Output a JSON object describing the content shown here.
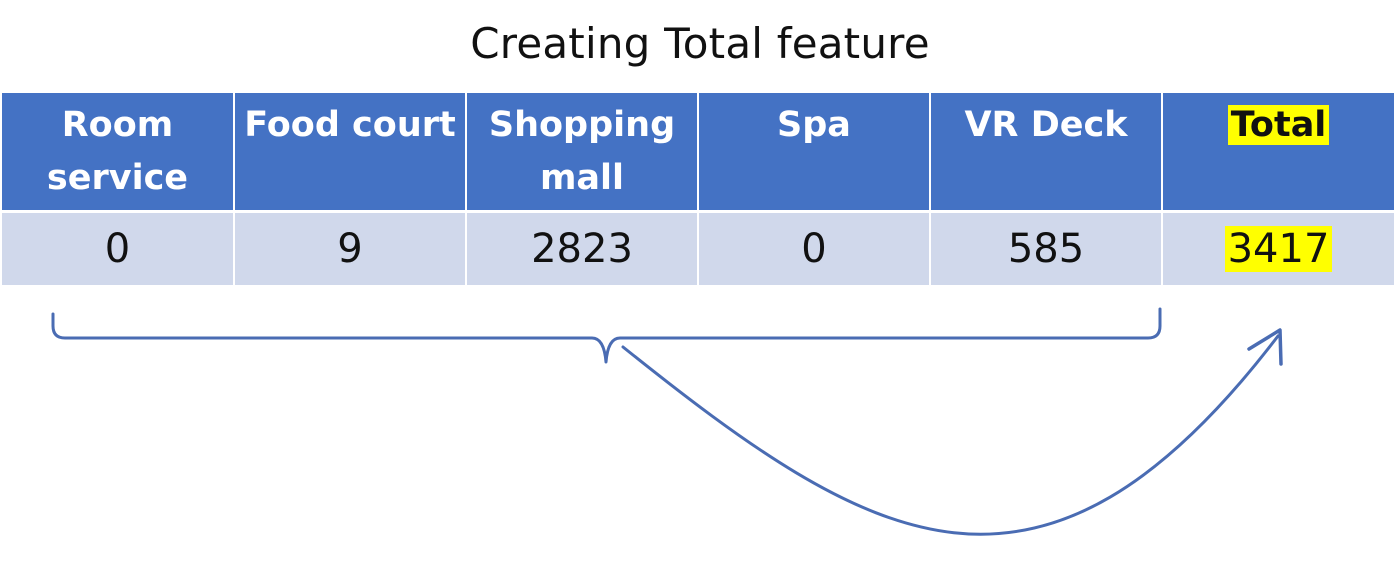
{
  "title": "Creating Total feature",
  "table": {
    "headers": [
      "Room service",
      "Food court",
      "Shopping mall",
      "Spa",
      "VR Deck",
      "Total"
    ],
    "values": [
      "0",
      "9",
      "2823",
      "0",
      "585",
      "3417"
    ]
  },
  "colors": {
    "header_bg": "#4472c4",
    "row_bg": "#d0d8eb",
    "highlight": "#ffff00",
    "brace_arrow": "#4a6cb3"
  }
}
